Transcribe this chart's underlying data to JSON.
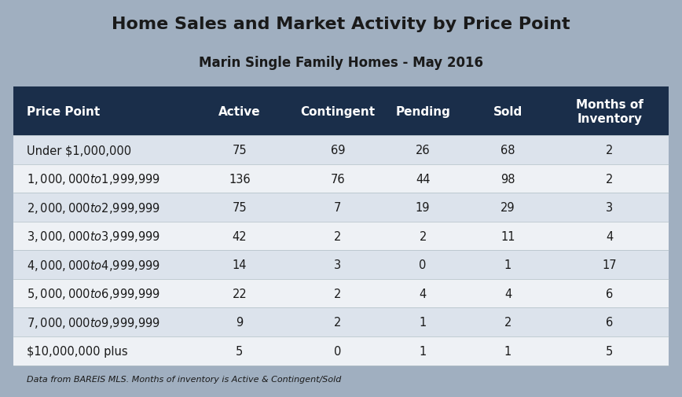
{
  "title": "Home Sales and Market Activity by Price Point",
  "subtitle": "Marin Single Family Homes - May 2016",
  "footnote": "Data from BAREIS MLS. Months of inventory is Active & Contingent/Sold",
  "columns": [
    "Price Point",
    "Active",
    "Contingent",
    "Pending",
    "Sold",
    "Months of\nInventory"
  ],
  "rows": [
    [
      "Under $1,000,000",
      "75",
      "69",
      "26",
      "68",
      "2"
    ],
    [
      "$1,000,000 to $1,999,999",
      "136",
      "76",
      "44",
      "98",
      "2"
    ],
    [
      "$2,000,000 to $2,999,999",
      "75",
      "7",
      "19",
      "29",
      "3"
    ],
    [
      "$3,000,000 to $3,999,999",
      "42",
      "2",
      "2",
      "11",
      "4"
    ],
    [
      "$4,000,000 to $4,999,999",
      "14",
      "3",
      "0",
      "1",
      "17"
    ],
    [
      "$5,000,000 to $6,999,999",
      "22",
      "2",
      "4",
      "4",
      "6"
    ],
    [
      "$7,000,000 to $9,999,999",
      "9",
      "2",
      "1",
      "2",
      "6"
    ],
    [
      "$10,000,000 plus",
      "5",
      "0",
      "1",
      "1",
      "5"
    ]
  ],
  "bg_color": "#a0afc0",
  "header_bg": "#1a2e4a",
  "header_text": "#ffffff",
  "row_even_bg": "#dce3ec",
  "row_odd_bg": "#eef1f5",
  "row_text": "#1a1a1a",
  "title_color": "#1a1a1a",
  "title_fontsize": 16,
  "subtitle_fontsize": 12,
  "header_fontsize": 11,
  "row_fontsize": 10.5,
  "footnote_fontsize": 8,
  "separator_color": "#b0bec5"
}
